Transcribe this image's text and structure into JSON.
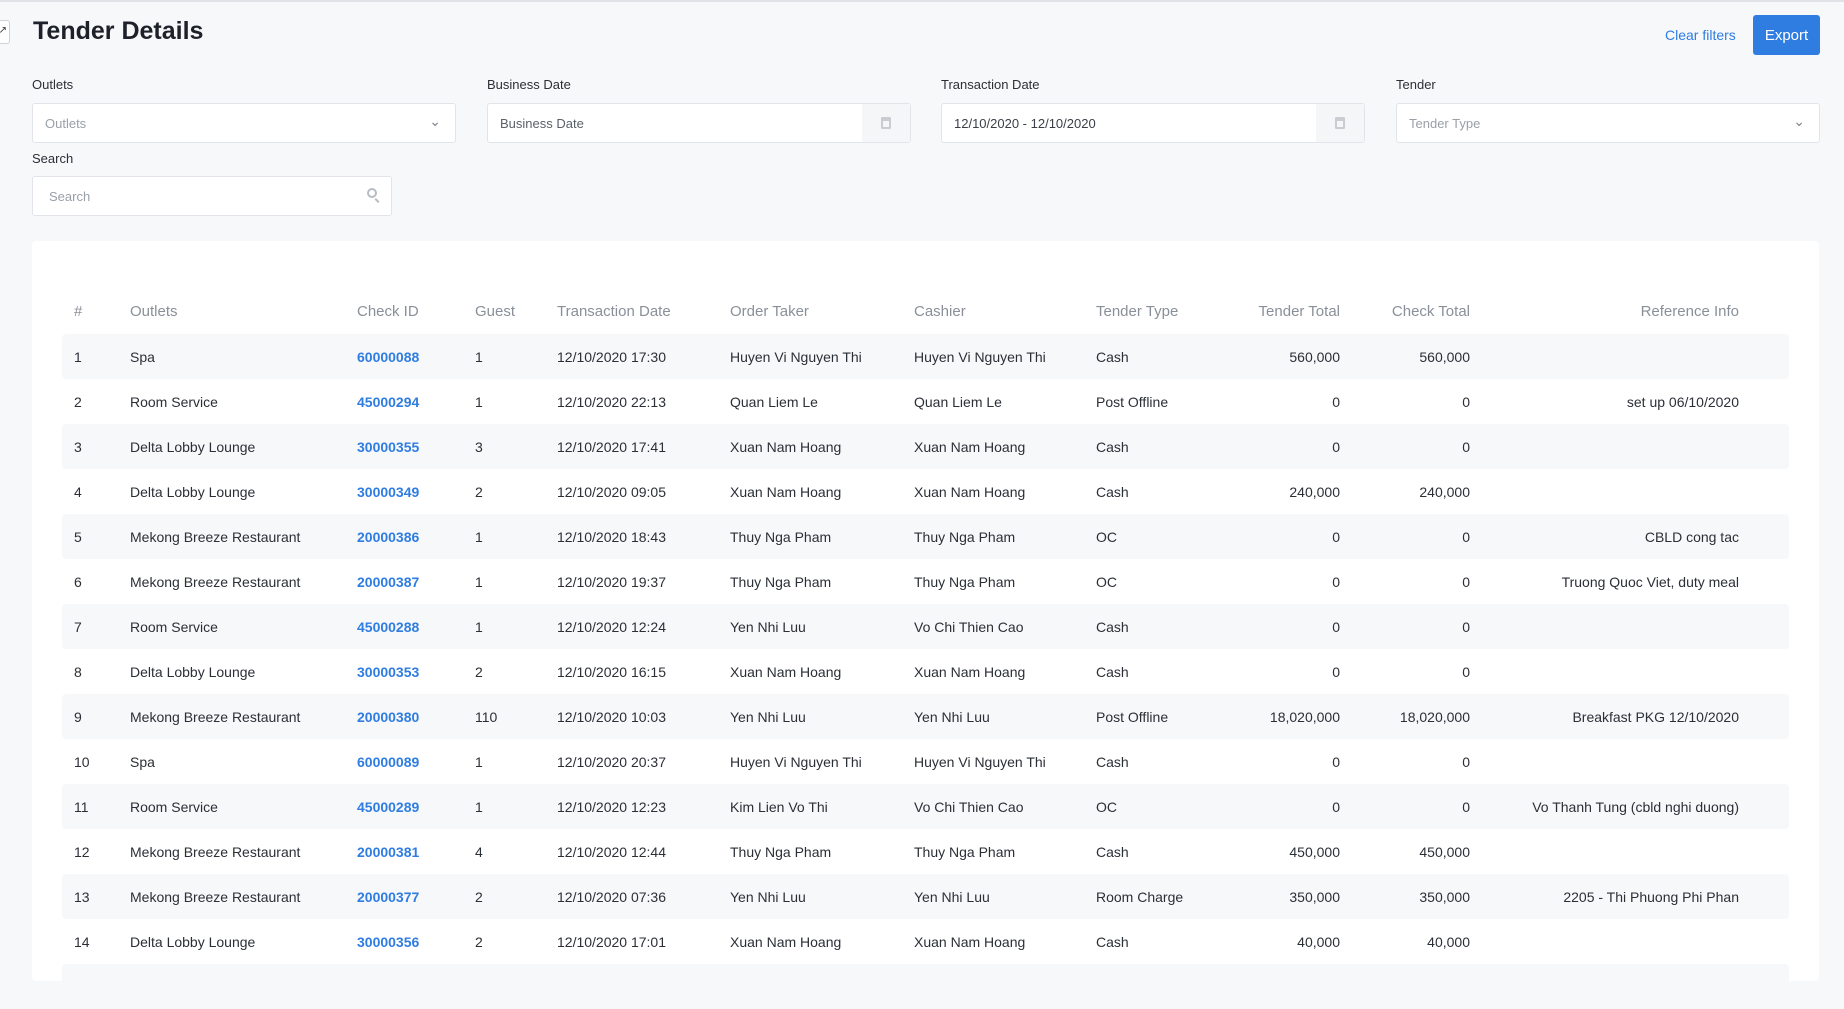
{
  "header": {
    "title": "Tender Details",
    "clear_filters": "Clear filters",
    "export": "Export"
  },
  "filters": {
    "outlets": {
      "label": "Outlets",
      "placeholder": "Outlets"
    },
    "business_date": {
      "label": "Business Date",
      "placeholder": "Business Date"
    },
    "transaction_date": {
      "label": "Transaction Date",
      "value": "12/10/2020 - 12/10/2020"
    },
    "tender": {
      "label": "Tender",
      "placeholder": "Tender Type"
    },
    "search": {
      "label": "Search",
      "placeholder": "Search"
    }
  },
  "colors": {
    "accent": "#2f7de1"
  },
  "table": {
    "columns": [
      "#",
      "Outlets",
      "Check ID",
      "Guest",
      "Transaction Date",
      "Order Taker",
      "Cashier",
      "Tender Type",
      "Tender Total",
      "Check Total",
      "Reference Info"
    ],
    "rows": [
      [
        "1",
        "Spa",
        "60000088",
        "1",
        "12/10/2020 17:30",
        "Huyen Vi Nguyen Thi",
        "Huyen Vi Nguyen Thi",
        "Cash",
        "560,000",
        "560,000",
        ""
      ],
      [
        "2",
        "Room Service",
        "45000294",
        "1",
        "12/10/2020 22:13",
        "Quan Liem Le",
        "Quan Liem Le",
        "Post Offline",
        "0",
        "0",
        "set up 06/10/2020"
      ],
      [
        "3",
        "Delta Lobby Lounge",
        "30000355",
        "3",
        "12/10/2020 17:41",
        "Xuan Nam Hoang",
        "Xuan Nam Hoang",
        "Cash",
        "0",
        "0",
        ""
      ],
      [
        "4",
        "Delta Lobby Lounge",
        "30000349",
        "2",
        "12/10/2020 09:05",
        "Xuan Nam Hoang",
        "Xuan Nam Hoang",
        "Cash",
        "240,000",
        "240,000",
        ""
      ],
      [
        "5",
        "Mekong Breeze Restaurant",
        "20000386",
        "1",
        "12/10/2020 18:43",
        "Thuy Nga Pham",
        "Thuy Nga Pham",
        "OC",
        "0",
        "0",
        "CBLD cong tac"
      ],
      [
        "6",
        "Mekong Breeze Restaurant",
        "20000387",
        "1",
        "12/10/2020 19:37",
        "Thuy Nga Pham",
        "Thuy Nga Pham",
        "OC",
        "0",
        "0",
        "Truong Quoc Viet, duty meal"
      ],
      [
        "7",
        "Room Service",
        "45000288",
        "1",
        "12/10/2020 12:24",
        "Yen Nhi Luu",
        "Vo Chi Thien Cao",
        "Cash",
        "0",
        "0",
        ""
      ],
      [
        "8",
        "Delta Lobby Lounge",
        "30000353",
        "2",
        "12/10/2020 16:15",
        "Xuan Nam Hoang",
        "Xuan Nam Hoang",
        "Cash",
        "0",
        "0",
        ""
      ],
      [
        "9",
        "Mekong Breeze Restaurant",
        "20000380",
        "110",
        "12/10/2020 10:03",
        "Yen Nhi Luu",
        "Yen Nhi Luu",
        "Post Offline",
        "18,020,000",
        "18,020,000",
        "Breakfast PKG 12/10/2020"
      ],
      [
        "10",
        "Spa",
        "60000089",
        "1",
        "12/10/2020 20:37",
        "Huyen Vi Nguyen Thi",
        "Huyen Vi Nguyen Thi",
        "Cash",
        "0",
        "0",
        ""
      ],
      [
        "11",
        "Room Service",
        "45000289",
        "1",
        "12/10/2020 12:23",
        "Kim Lien Vo Thi",
        "Vo Chi Thien Cao",
        "OC",
        "0",
        "0",
        "Vo Thanh Tung (cbld nghi duong)"
      ],
      [
        "12",
        "Mekong Breeze Restaurant",
        "20000381",
        "4",
        "12/10/2020 12:44",
        "Thuy Nga Pham",
        "Thuy Nga Pham",
        "Cash",
        "450,000",
        "450,000",
        ""
      ],
      [
        "13",
        "Mekong Breeze Restaurant",
        "20000377",
        "2",
        "12/10/2020 07:36",
        "Yen Nhi Luu",
        "Yen Nhi Luu",
        "Room Charge",
        "350,000",
        "350,000",
        "2205 - Thi Phuong Phi Phan"
      ],
      [
        "14",
        "Delta Lobby Lounge",
        "30000356",
        "2",
        "12/10/2020 17:01",
        "Xuan Nam Hoang",
        "Xuan Nam Hoang",
        "Cash",
        "40,000",
        "40,000",
        ""
      ]
    ]
  }
}
